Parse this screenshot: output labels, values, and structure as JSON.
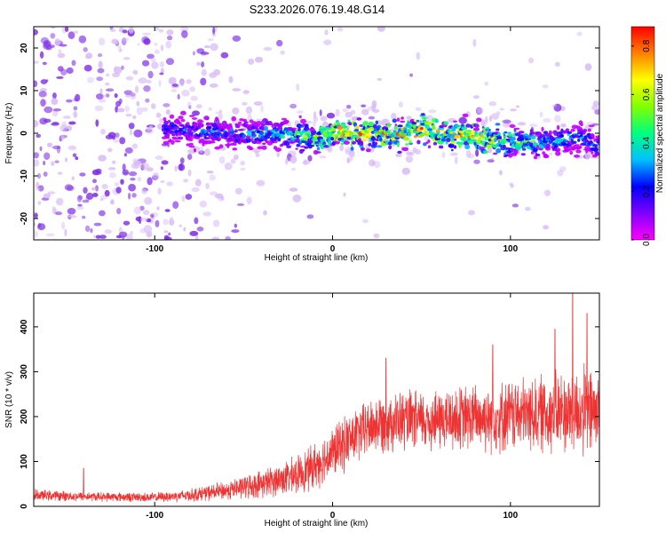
{
  "figure": {
    "title": "S233.2026.076.19.48.G14"
  },
  "colors": {
    "signal_red": "#ee3333",
    "purple": "#7f2fe8",
    "light_purple": "#d9bcf6",
    "colormap": [
      "#ff00ff",
      "#8000ff",
      "#0000ff",
      "#00c0ff",
      "#00ff80",
      "#80ff00",
      "#ffff00",
      "#ff8000",
      "#ff0000"
    ]
  },
  "chart_data": [
    {
      "type": "heatmap",
      "xlabel": "Height of straight line (km)",
      "ylabel": "Frequency (Hz)",
      "xlim": [
        -168,
        150
      ],
      "ylim": [
        -25,
        25
      ],
      "x_ticks": [
        -100,
        0,
        100
      ],
      "y_ticks": [
        -20,
        -10,
        0,
        10,
        20
      ],
      "ridge": {
        "description_x": [
          -95,
          -60,
          -30,
          -10,
          0,
          20,
          40,
          50,
          60,
          80,
          100,
          120,
          140,
          148
        ],
        "frequency_hz": [
          1,
          0,
          0,
          -1,
          0,
          0,
          0,
          1,
          0,
          -1,
          -2,
          -2,
          -1,
          -3
        ],
        "peak_amplitude": [
          0.3,
          0.35,
          0.45,
          0.6,
          0.85,
          0.8,
          0.8,
          0.9,
          0.75,
          0.8,
          0.6,
          0.45,
          0.4,
          0.35
        ]
      },
      "colorbar": {
        "label": "Normalized spectral amplitude",
        "range": [
          0.0,
          0.88
        ],
        "ticks": [
          "0.0",
          "0.2",
          "0.4",
          "0.6",
          "0.8"
        ]
      }
    },
    {
      "type": "line",
      "xlabel": "Height of straight line (km)",
      "ylabel": "SNR (10 * v/v)",
      "xlim": [
        -168,
        150
      ],
      "ylim": [
        0,
        475
      ],
      "x_ticks": [
        -100,
        0,
        100
      ],
      "y_ticks": [
        0,
        100,
        200,
        300,
        400
      ],
      "envelope": {
        "x": [
          -168,
          -140,
          -100,
          -80,
          -60,
          -40,
          -20,
          -10,
          0,
          10,
          20,
          30,
          50,
          70,
          90,
          110,
          130,
          150
        ],
        "mean": [
          25,
          22,
          20,
          25,
          35,
          50,
          70,
          90,
          120,
          150,
          175,
          190,
          190,
          195,
          200,
          205,
          210,
          210
        ],
        "spread": [
          12,
          10,
          10,
          14,
          20,
          30,
          40,
          50,
          55,
          60,
          60,
          65,
          65,
          70,
          75,
          80,
          90,
          100
        ]
      },
      "peaks": {
        "x": [
          -140,
          30,
          90,
          125,
          135,
          143
        ],
        "y": [
          85,
          330,
          360,
          395,
          475,
          430
        ]
      }
    }
  ]
}
